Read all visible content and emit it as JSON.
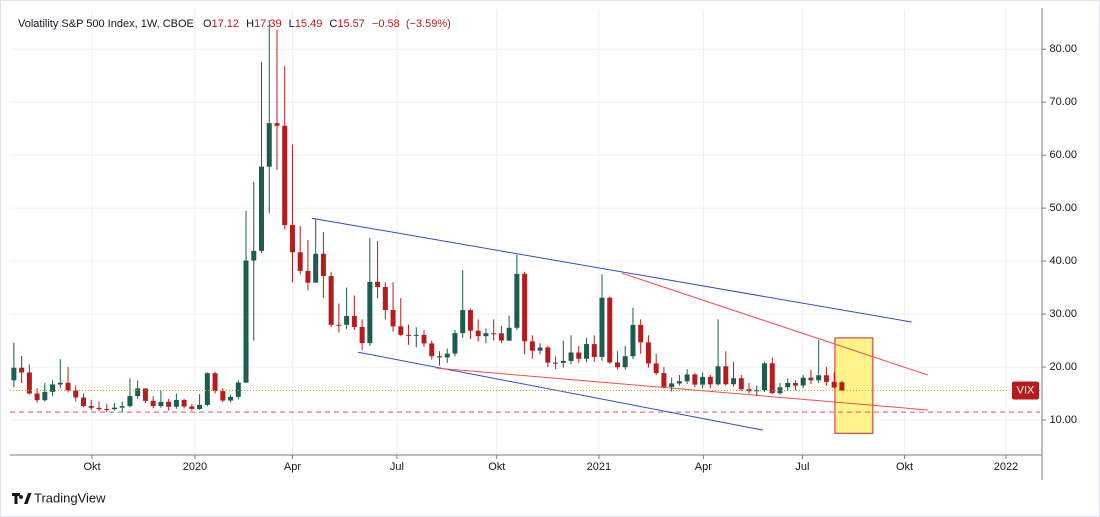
{
  "chart_data": {
    "type": "candlestick",
    "title": "Volatility S&P 500 Index, 1W, CBOE",
    "ohlc_keys": [
      "O",
      "H",
      "L",
      "C"
    ],
    "change": {
      "value": -0.58,
      "label": "−0.58"
    },
    "change_pct": {
      "value": -3.59,
      "label": "(−3.59%)"
    },
    "symbol": "VIX",
    "brand": "TradingView",
    "up_color": "#1b5e4f",
    "down_color": "#b71c1c",
    "grid": true,
    "candles": {
      "open": [
        17.5,
        19.87,
        18.98,
        15.0,
        13.74,
        15.32,
        16.71,
        17.04,
        15.58,
        14.25,
        12.65,
        12.3,
        12.07,
        12.05,
        12.34,
        12.62,
        14.52,
        15.96,
        13.62,
        12.63,
        13.43,
        12.51,
        13.78,
        12.56,
        12.1,
        12.85,
        18.84,
        15.47,
        13.68,
        14.38,
        17.08,
        40.11,
        41.94,
        57.83,
        66.04,
        65.54,
        46.8,
        41.67,
        38.15,
        35.93,
        41.38,
        37.19,
        27.99,
        27.98,
        29.63,
        27.57,
        24.52,
        36.09,
        35.12,
        30.77,
        27.68,
        26.08,
        25.91,
        26.08,
        24.46,
        22.05,
        21.82,
        22.54,
        26.41,
        30.75,
        26.87,
        25.83,
        26.38,
        26.37,
        25.0,
        27.41,
        37.59,
        24.86,
        23.1,
        23.7,
        20.84,
        20.79,
        21.16,
        22.75,
        21.56,
        24.34,
        21.91,
        33.09,
        20.87,
        19.97,
        22.05,
        27.95,
        24.66,
        20.69,
        18.86,
        16.25,
        16.91,
        17.33,
        18.61,
        16.69,
        18.15,
        16.74,
        20.15,
        16.76,
        17.89,
        15.82,
        15.43,
        15.65,
        20.7,
        15.07,
        16.18,
        17.0,
        16.5,
        18.0,
        17.5,
        18.45,
        17.2,
        17.12
      ],
      "high": [
        24.6,
        22.1,
        20.5,
        16.0,
        17.0,
        17.5,
        21.5,
        20.0,
        16.5,
        15.0,
        13.8,
        13.5,
        13.0,
        13.2,
        13.5,
        17.9,
        17.5,
        16.0,
        14.5,
        15.5,
        14.0,
        15.0,
        14.0,
        13.0,
        14.9,
        19.0,
        19.1,
        16.0,
        14.8,
        17.5,
        49.5,
        55.0,
        77.6,
        85.5,
        83.6,
        76.8,
        62.0,
        46.6,
        44.0,
        48.0,
        45.5,
        38.0,
        32.0,
        35.0,
        33.5,
        29.0,
        44.4,
        43.8,
        36.0,
        36.0,
        33.0,
        28.0,
        27.5,
        27.0,
        25.0,
        23.0,
        23.5,
        27.0,
        38.3,
        31.0,
        29.0,
        27.3,
        29.0,
        27.8,
        29.7,
        41.2,
        38.0,
        26.0,
        24.5,
        24.0,
        22.0,
        25.0,
        26.0,
        24.0,
        25.5,
        26.0,
        37.5,
        33.3,
        23.0,
        24.0,
        31.2,
        29.0,
        26.0,
        22.5,
        20.0,
        18.0,
        18.5,
        19.6,
        18.9,
        19.0,
        18.5,
        29.0,
        23.0,
        21.0,
        18.5,
        17.0,
        16.5,
        21.0,
        21.8,
        17.0,
        17.8,
        17.5,
        18.5,
        19.5,
        25.1,
        20.0,
        19.0,
        17.39
      ],
      "low": [
        16.2,
        17.0,
        14.8,
        13.3,
        13.5,
        14.5,
        16.0,
        15.2,
        13.5,
        12.4,
        11.9,
        11.7,
        11.5,
        11.8,
        11.5,
        12.4,
        14.0,
        13.2,
        12.2,
        12.3,
        11.8,
        12.1,
        12.2,
        11.8,
        11.9,
        12.6,
        15.0,
        13.4,
        13.3,
        13.9,
        17.0,
        25.0,
        41.5,
        49.0,
        57.2,
        46.0,
        36.0,
        37.5,
        34.5,
        36.0,
        33.0,
        27.5,
        26.5,
        27.2,
        27.0,
        23.2,
        24.0,
        33.0,
        29.0,
        26.7,
        25.8,
        24.2,
        23.7,
        23.8,
        21.4,
        20.3,
        20.8,
        22.0,
        25.5,
        25.3,
        24.8,
        24.5,
        25.0,
        24.5,
        24.9,
        27.0,
        22.4,
        21.6,
        22.4,
        20.0,
        19.6,
        19.9,
        20.5,
        20.8,
        20.9,
        21.0,
        21.2,
        20.6,
        19.5,
        19.5,
        21.5,
        22.5,
        19.9,
        18.5,
        16.0,
        15.4,
        16.5,
        16.8,
        16.2,
        16.0,
        16.0,
        16.5,
        16.5,
        16.3,
        15.5,
        15.0,
        14.6,
        15.3,
        14.9,
        14.8,
        15.6,
        15.6,
        16.0,
        16.8,
        17.0,
        16.5,
        16.0,
        15.49
      ],
      "close": [
        19.87,
        18.98,
        15.0,
        13.74,
        15.32,
        16.71,
        17.04,
        15.58,
        14.25,
        12.65,
        12.3,
        12.07,
        12.05,
        12.34,
        12.62,
        14.52,
        15.96,
        13.62,
        12.63,
        13.43,
        12.51,
        13.78,
        12.56,
        12.1,
        12.85,
        18.84,
        15.47,
        13.68,
        14.38,
        17.08,
        40.11,
        41.94,
        57.83,
        66.04,
        65.54,
        46.8,
        41.67,
        38.15,
        35.93,
        41.38,
        37.19,
        27.99,
        27.98,
        29.63,
        27.57,
        24.52,
        36.09,
        35.12,
        30.77,
        27.68,
        26.08,
        25.91,
        26.08,
        24.46,
        22.05,
        21.82,
        22.54,
        26.41,
        30.75,
        26.87,
        25.83,
        26.38,
        26.37,
        25.0,
        27.41,
        37.59,
        24.86,
        23.1,
        23.7,
        20.84,
        20.79,
        21.16,
        22.75,
        21.56,
        24.34,
        21.91,
        33.09,
        20.87,
        19.97,
        22.05,
        27.95,
        24.66,
        20.69,
        18.86,
        16.25,
        16.91,
        17.33,
        18.61,
        16.69,
        18.15,
        16.74,
        20.15,
        16.76,
        17.89,
        15.82,
        15.43,
        15.65,
        20.7,
        15.07,
        16.18,
        17.0,
        16.5,
        18.0,
        17.5,
        18.45,
        17.2,
        16.15,
        15.57
      ]
    },
    "xlim": [
      -0.5,
      132.6
    ],
    "xticks": [
      {
        "value": 10.1,
        "label": "Okt"
      },
      {
        "value": 23.4,
        "label": "2020"
      },
      {
        "value": 36.0,
        "label": "Apr"
      },
      {
        "value": 49.5,
        "label": "Jul"
      },
      {
        "value": 62.4,
        "label": "Okt"
      },
      {
        "value": 75.6,
        "label": "2021"
      },
      {
        "value": 89.1,
        "label": "Apr"
      },
      {
        "value": 101.9,
        "label": "Jul"
      },
      {
        "value": 115.1,
        "label": "Okt"
      },
      {
        "value": 128.2,
        "label": "2022"
      }
    ],
    "ylim": [
      3.4,
      87.4
    ],
    "yticks": [
      {
        "value": 10,
        "label": "10.00"
      },
      {
        "value": 20,
        "label": "20.00"
      },
      {
        "value": 30,
        "label": "30.00"
      },
      {
        "value": 40,
        "label": "40.00"
      },
      {
        "value": 50,
        "label": "50.00"
      },
      {
        "value": 60,
        "label": "60.00"
      },
      {
        "value": 70,
        "label": "70.00"
      },
      {
        "value": 80,
        "label": "80.00"
      }
    ],
    "trendlines": [
      {
        "color": "#3347d6",
        "x": [
          38.5,
          116.0
        ],
        "y": [
          48.1,
          28.5
        ]
      },
      {
        "color": "#3347d6",
        "x": [
          44.5,
          96.8
        ],
        "y": [
          22.8,
          8.1
        ]
      },
      {
        "color": "#f05050",
        "x": [
          78.6,
          118.1
        ],
        "y": [
          37.7,
          18.5
        ]
      },
      {
        "color": "#f05050",
        "x": [
          54.6,
          118.1
        ],
        "y": [
          19.8,
          11.9
        ]
      }
    ],
    "hline": {
      "value": 11.5,
      "color": "#f05050"
    },
    "highlight": {
      "x": [
        106.1,
        111.0
      ],
      "y": [
        7.5,
        25.5
      ],
      "color": "#fff176"
    }
  }
}
